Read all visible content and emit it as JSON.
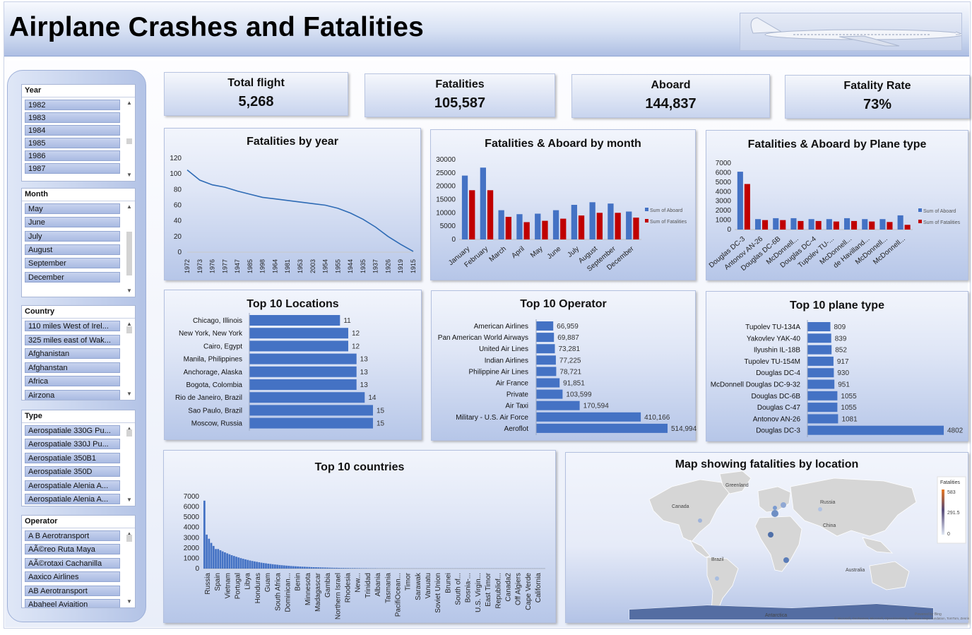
{
  "title": "Airplane Crashes and Fatalities",
  "kpis": [
    {
      "title": "Total flight",
      "value": "5,268"
    },
    {
      "title": "Fatalities",
      "value": "105,587"
    },
    {
      "title": "Aboard",
      "value": "144,837"
    },
    {
      "title": "Fatality Rate",
      "value": "73%"
    }
  ],
  "slicers": {
    "year": {
      "title": "Year",
      "items": [
        "1982",
        "1983",
        "1984",
        "1985",
        "1986",
        "1987"
      ]
    },
    "month": {
      "title": "Month",
      "items": [
        "May",
        "June",
        "July",
        "August",
        "September",
        "December"
      ]
    },
    "country": {
      "title": "Country",
      "items": [
        "110 miles West of Irel...",
        "325 miles east of Wak...",
        "Afghanistan",
        "Afghanstan",
        "Africa",
        "Airzona"
      ]
    },
    "type": {
      "title": "Type",
      "items": [
        "Aerospatiale 330G Pu...",
        "Aerospatiale 330J Pu...",
        "Aerospatiale 350B1",
        "Aerospatiale 350D",
        "Aerospatiale Alenia A...",
        "Aerospatiale Alenia A..."
      ]
    },
    "operator": {
      "title": "Operator",
      "items": [
        "A B Aerotransport",
        "AÃ©reo Ruta Maya",
        "AÃ©rotaxi Cachanilla",
        "Aaxico Airlines",
        "AB Aerotransport",
        "Abaheel Aviaition"
      ]
    }
  },
  "chart_data": [
    {
      "id": "fatalities_by_year",
      "type": "line",
      "title": "Fatalities  by year",
      "categories": [
        "1972",
        "1973",
        "1976",
        "1977",
        "1947",
        "1985",
        "1998",
        "1964",
        "1981",
        "1953",
        "2003",
        "1954",
        "1955",
        "1944",
        "1935",
        "1937",
        "1926",
        "1919",
        "1915"
      ],
      "values": [
        105,
        92,
        86,
        83,
        78,
        74,
        70,
        68,
        66,
        64,
        62,
        60,
        56,
        50,
        42,
        32,
        20,
        10,
        1
      ],
      "yticks": [
        "0",
        "20",
        "40",
        "60",
        "80",
        "100",
        "120"
      ],
      "ylim": [
        0,
        120
      ],
      "color": "#2e6bb5"
    },
    {
      "id": "by_month",
      "type": "bar",
      "title": "Fatalities & Aboard by month",
      "categories": [
        "January",
        "February",
        "March",
        "April",
        "May",
        "June",
        "July",
        "August",
        "September",
        "December"
      ],
      "series": [
        {
          "name": "Sum of Aboard",
          "values": [
            24000,
            27000,
            11000,
            9500,
            9700,
            11000,
            13000,
            14000,
            13500,
            10500
          ],
          "color": "#4472c4"
        },
        {
          "name": "Sum of Fatalities",
          "values": [
            18500,
            18500,
            8500,
            6500,
            7000,
            7800,
            9000,
            10000,
            10000,
            8200
          ],
          "color": "#c00000"
        }
      ],
      "yticks": [
        "0",
        "5000",
        "10000",
        "15000",
        "20000",
        "25000",
        "30000"
      ],
      "ylim": [
        0,
        30000
      ]
    },
    {
      "id": "by_plane_type",
      "type": "bar",
      "title": "Fatalities & Aboard by Plane type",
      "categories": [
        "Douglas DC-3",
        "Antonov AN-26",
        "Douglas DC-6B",
        "McDonnell...",
        "Douglas DC-4",
        "Tupolev TU-...",
        "McDonnell...",
        "de Havilland...",
        "McDonnell...",
        "McDonnell..."
      ],
      "series": [
        {
          "name": "Sum of Aboard",
          "values": [
            6100,
            1100,
            1200,
            1200,
            1100,
            1100,
            1200,
            1100,
            1100,
            1500
          ],
          "color": "#4472c4"
        },
        {
          "name": "Sum of Fatalities",
          "values": [
            4800,
            1000,
            1000,
            900,
            900,
            850,
            900,
            850,
            800,
            500
          ],
          "color": "#c00000"
        }
      ],
      "yticks": [
        "0",
        "1000",
        "2000",
        "3000",
        "4000",
        "5000",
        "6000",
        "7000"
      ],
      "ylim": [
        0,
        7000
      ]
    },
    {
      "id": "top_locations",
      "type": "bar",
      "orientation": "horizontal",
      "title": "Top 10 Locations",
      "categories": [
        "Chicago, Illinois",
        "New York, New York",
        "Cairo, Egypt",
        "Manila, Philippines",
        "Anchorage, Alaska",
        "Bogota, Colombia",
        "Rio de Janeiro, Brazil",
        "Sao Paulo, Brazil",
        "Moscow, Russia"
      ],
      "values": [
        11,
        12,
        12,
        13,
        13,
        13,
        14,
        15,
        15
      ],
      "labels": [
        "11",
        "12",
        "12",
        "13",
        "13",
        "13",
        "14",
        "15",
        "15"
      ]
    },
    {
      "id": "top_operator",
      "type": "bar",
      "orientation": "horizontal",
      "title": "Top 10 Operator",
      "categories": [
        "American Airlines",
        "Pan American World Airways",
        "United Air Lines",
        "Indian Airlines",
        "Philippine Air Lines",
        "Air France",
        "Private",
        "Air Taxi",
        "Military - U.S. Air Force",
        "Aeroflot"
      ],
      "values": [
        66959,
        69887,
        73281,
        77225,
        78721,
        91851,
        103599,
        170594,
        410166,
        514994
      ],
      "labels": [
        "66,959",
        "69,887",
        "73,281",
        "77,225",
        "78,721",
        "91,851",
        "103,599",
        "170,594",
        "410,166",
        "514,994"
      ]
    },
    {
      "id": "top_plane_type",
      "type": "bar",
      "orientation": "horizontal",
      "title": "Top 10  plane type",
      "categories": [
        "Tupolev TU-134A",
        "Yakovlev YAK-40",
        "Ilyushin IL-18B",
        "Tupolev TU-154M",
        "Douglas DC-4",
        "McDonnell Douglas DC-9-32",
        "Douglas DC-6B",
        "Douglas C-47",
        "Antonov AN-26",
        "Douglas DC-3"
      ],
      "values": [
        809,
        839,
        852,
        917,
        930,
        951,
        1055,
        1055,
        1081,
        4802
      ],
      "labels": [
        "809",
        "839",
        "852",
        "917",
        "930",
        "951",
        "1055",
        "1055",
        "1081",
        "4802"
      ]
    },
    {
      "id": "top_countries",
      "type": "bar",
      "title": "Top 10 countries",
      "categories": [
        "Russia",
        "Spain",
        "Vietnam",
        "Portugal",
        "Libya",
        "Honduras",
        "Guam",
        "South Africa",
        "Dominican...",
        "Benin",
        "Minnesota",
        "Madagascar",
        "Gambia",
        "Northern Israel",
        "Rhodesia",
        "New...",
        "Trinidad",
        "Albania",
        "Tasmania",
        "PacifiOcean...",
        "Timor",
        "Sarawak",
        "Vanuatu",
        "Soviet Union",
        "Brunei",
        "South of...",
        "Bosnia-...",
        "U.S. Virgin...",
        "East Timor",
        "Republiof...",
        "Canada2",
        "Off Algiers",
        "Cape Verde",
        "California"
      ],
      "yticks": [
        "0",
        "1000",
        "2000",
        "3000",
        "4000",
        "5000",
        "6000",
        "7000"
      ],
      "ylim": [
        0,
        7000
      ],
      "values_note_first_bars": [
        6600,
        3300,
        2900,
        2500,
        2200,
        1900
      ]
    },
    {
      "id": "fatalities_map",
      "type": "map",
      "title": "Map showing fatalities by location",
      "legend_title": "Fatalities",
      "legend_ticks": [
        "583",
        "291.5",
        "0"
      ],
      "labels": [
        "Greenland",
        "Canada",
        "Russia",
        "China",
        "Brazil",
        "Australia",
        "Antarctica"
      ],
      "attribution": "Powered by Bing",
      "attribution2": "© Microsoft, GeoNames, Microsoft, OpenStreetMap, Overture Maps Fundation, TomTom, Zenrin"
    }
  ]
}
